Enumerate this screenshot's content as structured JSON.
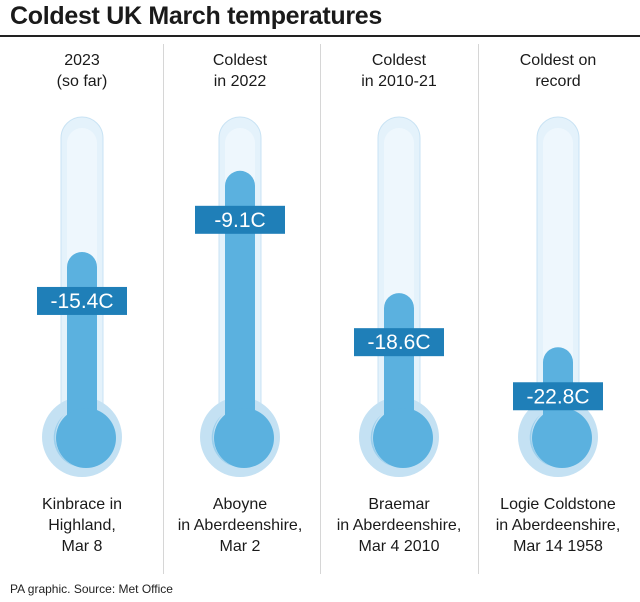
{
  "header": {
    "title": "Coldest UK March temperatures"
  },
  "footer": {
    "source": "PA graphic. Source: Met Office"
  },
  "chart_data": {
    "type": "bar",
    "title": "Coldest UK March temperatures",
    "unit": "C",
    "categories": [
      [
        "2023",
        "(so far)"
      ],
      [
        "Coldest",
        "in 2022"
      ],
      [
        "Coldest",
        "in 2010-21"
      ],
      [
        "Coldest on",
        "record"
      ]
    ],
    "values": [
      -15.4,
      -9.1,
      -18.6,
      -22.8
    ],
    "value_labels": [
      "-15.4C",
      "-9.1C",
      "-18.6C",
      "-22.8C"
    ],
    "locations": [
      [
        "Kinbrace in",
        "Highland,",
        "Mar 8"
      ],
      [
        "Aboyne",
        "in Aberdeenshire,",
        "Mar 2"
      ],
      [
        "Braemar",
        "in Aberdeenshire,",
        "Mar 4 2010"
      ],
      [
        "Logie Coldstone",
        "in Aberdeenshire,",
        "Mar 14 1958"
      ]
    ],
    "ylim": [
      -30,
      -5
    ],
    "colors": {
      "tube": "#e4f2fb",
      "tube_edge": "#c9e3f4",
      "bulb_outer": "#c4e1f3",
      "mercury": "#5bb1df",
      "mercury_shadow": "#9ccfec",
      "label_bg": "#1f7fb8",
      "label_text": "#ffffff"
    }
  }
}
